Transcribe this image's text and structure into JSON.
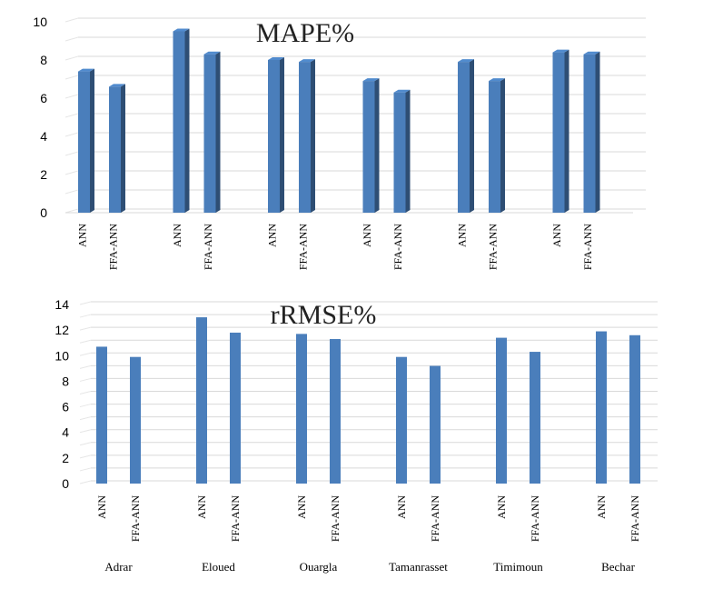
{
  "chart_data": [
    {
      "type": "bar",
      "title": "MAPE%",
      "style": "3d",
      "bar_color": "#4a7ebb",
      "categories": [
        "ANN",
        "FFA-ANN",
        "ANN",
        "FFA-ANN",
        "ANN",
        "FFA-ANN",
        "ANN",
        "FFA-ANN",
        "ANN",
        "FFA-ANN",
        "ANN",
        "FFA-ANN"
      ],
      "values": [
        7.4,
        6.6,
        9.5,
        8.3,
        8.0,
        7.9,
        6.9,
        6.3,
        7.9,
        6.9,
        8.4,
        8.3
      ],
      "ylim": [
        0,
        10
      ],
      "yticks": [
        "0",
        "2",
        "4",
        "6",
        "8",
        "10"
      ],
      "grid": true
    },
    {
      "type": "bar",
      "title": "rRMSE%",
      "style": "flat",
      "bar_color": "#4a7ebb",
      "categories": [
        "ANN",
        "FFA-ANN",
        "ANN",
        "FFA-ANN",
        "ANN",
        "FFA-ANN",
        "ANN",
        "FFA-ANN",
        "ANN",
        "FFA-ANN",
        "ANN",
        "FFA-ANN"
      ],
      "groups": [
        "Adrar",
        "Eloued",
        "Ouargla",
        "Tamanrasset",
        "Timimoun",
        "Bechar"
      ],
      "values": [
        10.7,
        9.9,
        13.0,
        11.8,
        11.7,
        11.3,
        9.9,
        9.2,
        11.4,
        10.3,
        11.9,
        11.6
      ],
      "ylim": [
        0,
        14
      ],
      "yticks": [
        "0",
        "2",
        "4",
        "6",
        "8",
        "10",
        "12",
        "14"
      ],
      "grid": true
    }
  ]
}
